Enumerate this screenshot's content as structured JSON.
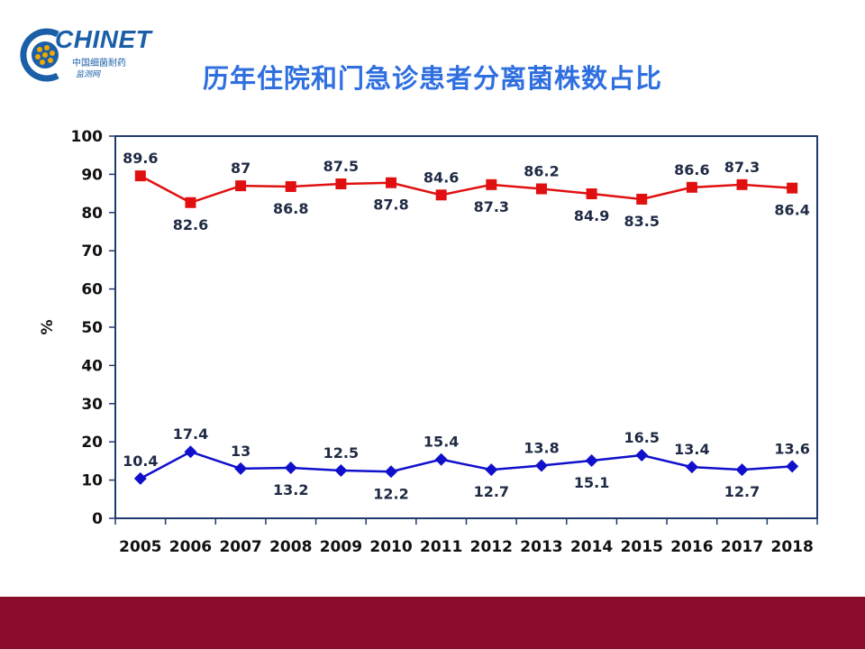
{
  "logo": {
    "name": "CHINET",
    "subtitle_cn": "中国细菌耐药",
    "subtitle_cn2": "监测网"
  },
  "title": "历年住院和门急诊患者分离菌株数占比",
  "colors": {
    "title": "#2f6fe0",
    "inpatient": "#e01010",
    "outpatient": "#1010cc",
    "frame": "#1f3a6e",
    "band": "#8a0e2b"
  },
  "chart_data": {
    "type": "line",
    "title": "历年住院和门急诊患者分离菌株数占比",
    "xlabel": "",
    "ylabel": "%",
    "ylim": [
      0,
      100
    ],
    "yticks": [
      0,
      10,
      20,
      30,
      40,
      50,
      60,
      70,
      80,
      90,
      100
    ],
    "grid": false,
    "categories": [
      "2005",
      "2006",
      "2007",
      "2008",
      "2009",
      "2010",
      "2011",
      "2012",
      "2013",
      "2014",
      "2015",
      "2016",
      "2017",
      "2018"
    ],
    "series": [
      {
        "values": [
          89.6,
          82.6,
          87,
          86.8,
          87.5,
          87.8,
          84.6,
          87.3,
          86.2,
          84.9,
          83.5,
          86.6,
          87.3,
          86.4
        ],
        "labels": [
          "89.6",
          "82.6",
          "87",
          "86.8",
          "87.5",
          "87.8",
          "84.6",
          "87.3",
          "86.2",
          "84.9",
          "83.5",
          "86.6",
          "87.3",
          "86.4"
        ],
        "marker": "square",
        "color": "#e01010"
      },
      {
        "values": [
          10.4,
          17.4,
          13,
          13.2,
          12.5,
          12.2,
          15.4,
          12.7,
          13.8,
          15.1,
          16.5,
          13.4,
          12.7,
          13.6
        ],
        "labels": [
          "10.4",
          "17.4",
          "13",
          "13.2",
          "12.5",
          "12.2",
          "15.4",
          "12.7",
          "13.8",
          "15.1",
          "16.5",
          "13.4",
          "12.7",
          "13.6"
        ],
        "marker": "diamond",
        "color": "#1010cc"
      }
    ]
  }
}
